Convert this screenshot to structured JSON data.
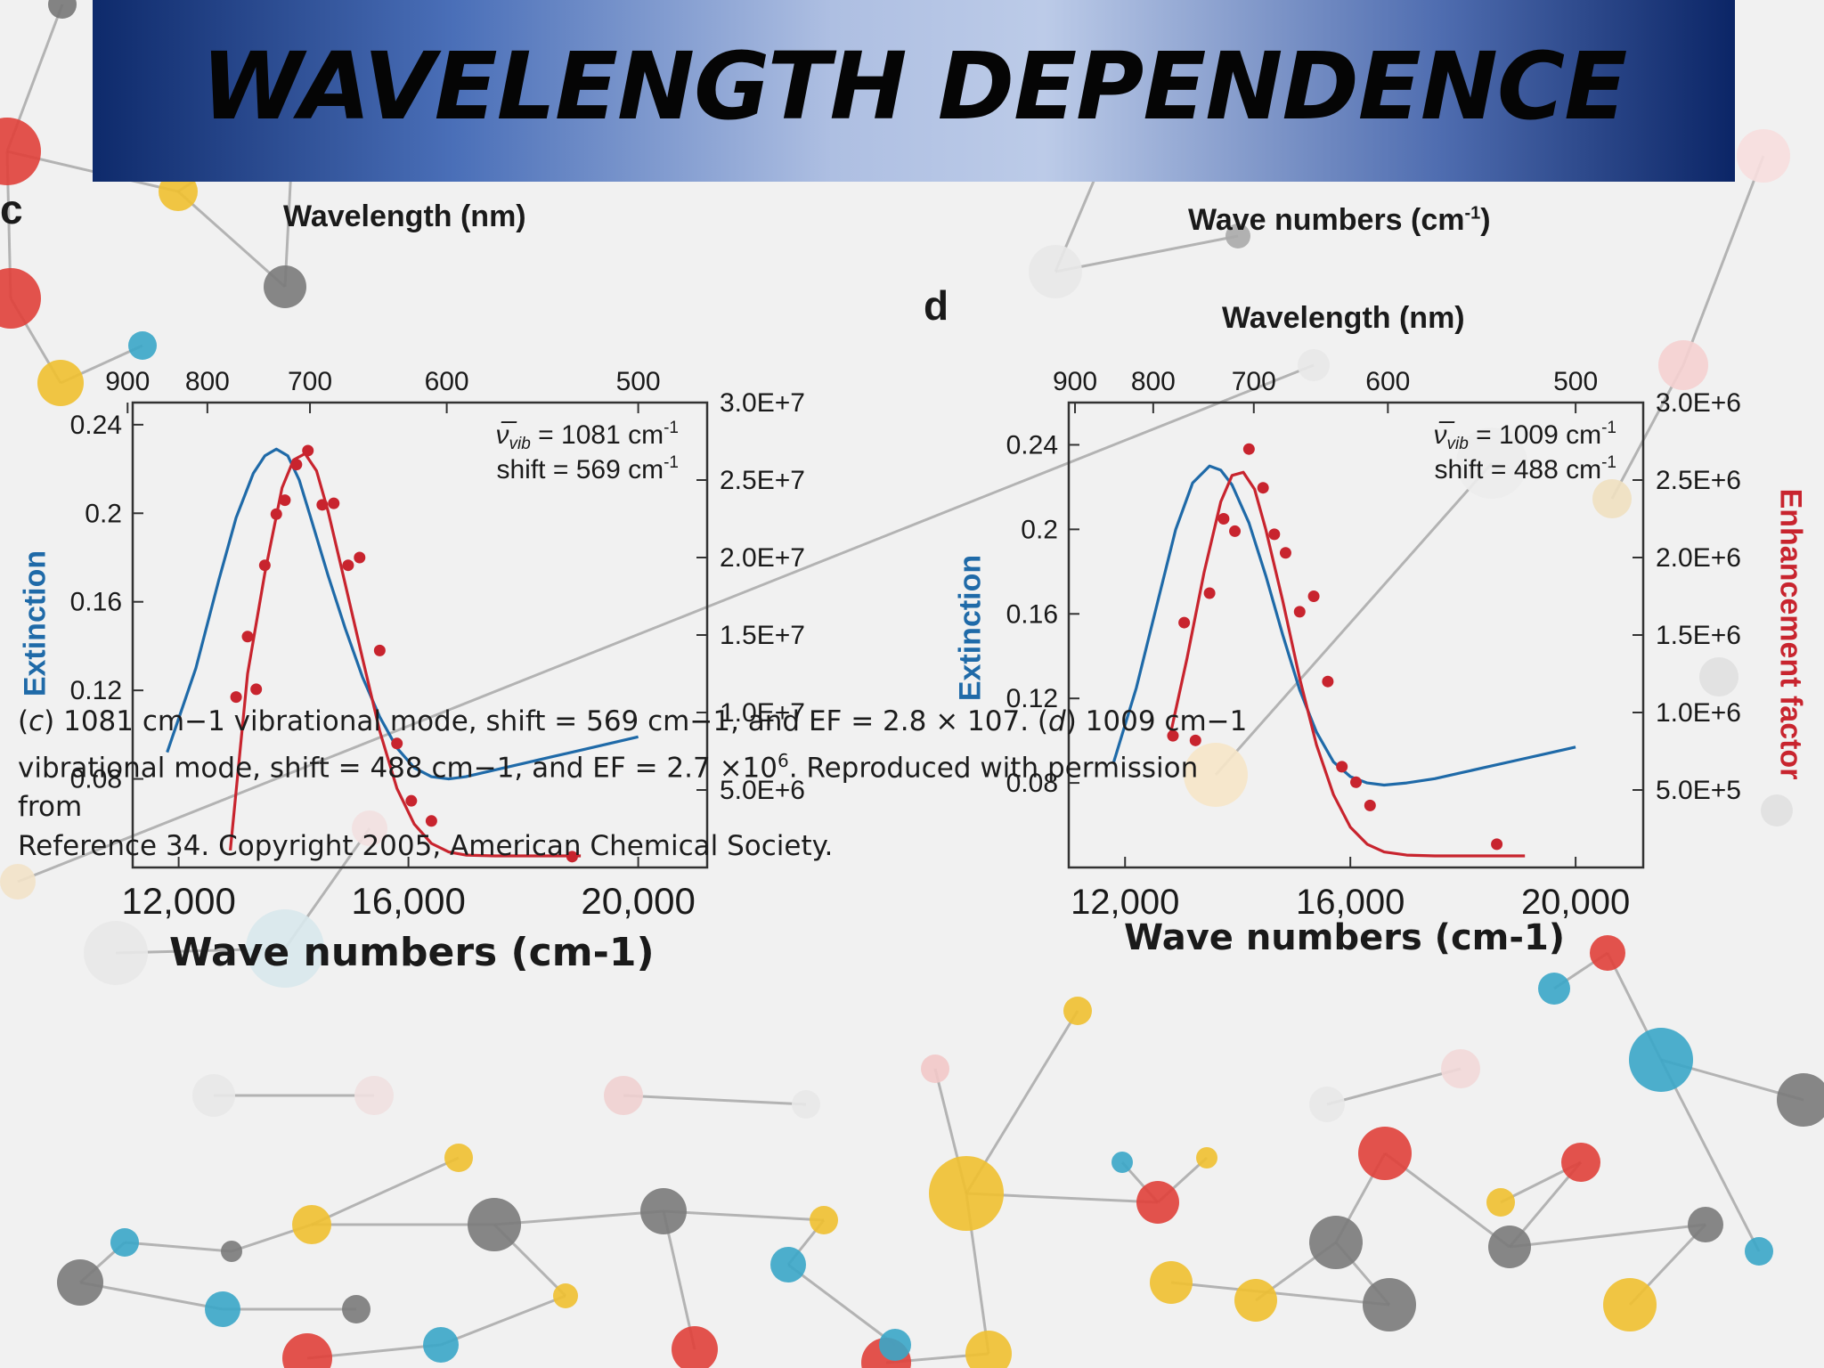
{
  "slide": {
    "title": "WAVELENGTH DEPENDENCE"
  },
  "labels": {
    "panel_c_letter": "c",
    "panel_c_wavelength_stray": "Wavelength (nm)",
    "panel_d_wavenumbers_stray": "Wave numbers (cm",
    "panel_d_wavenumbers_stray_sup": "-1",
    "panel_d_wavenumbers_stray_end": ")",
    "panel_d_letter": "d",
    "panel_d_wavelength": "Wavelength (nm)",
    "panel_c_xlabel": "Wave numbers (cm-1)",
    "panel_d_xlabel": "Wave numbers (cm-1)",
    "ylabel_left": "Extinction",
    "ylabel_right": "Enhancement factor"
  },
  "caption": {
    "line1_a": "(",
    "line1_c": "c",
    "line1_b": ") 1081 cm−1 vibrational mode, shift = 569 cm−1, and EF = 2.8 × 107. (",
    "line1_d": "d",
    "line1_e": ") 1009 cm−1",
    "line2_a": "vibrational mode, shift = 488 cm−1, and EF = 2.7 ×10",
    "line2_sup": "6",
    "line2_b": ". Reproduced with permission from",
    "line3": "Reference 34. Copyright 2005, American Chemical Society."
  },
  "colors": {
    "extinction": "#1f6aa8",
    "enhancement": "#c8242e",
    "axis": "#333333"
  },
  "chart_data": [
    {
      "panel": "c",
      "type": "line",
      "annotation": {
        "vib_symbol": "ν̅",
        "vib_sub": "vib",
        "vib_value": " = 1081 cm",
        "vib_sup": "-1",
        "shift_value": "shift = 569 cm",
        "shift_sup": "-1"
      },
      "xlabel": "Wave numbers (cm-1)",
      "xlim": [
        11200,
        21200
      ],
      "xticks": [
        12000,
        16000,
        20000
      ],
      "xticklabels": [
        "12,000",
        "16,000",
        "20,000"
      ],
      "top_axis": {
        "label": "Wavelength (nm)",
        "ticks": [
          900,
          800,
          700,
          600,
          500
        ],
        "ticklabels": [
          "900",
          "800",
          "700",
          "600",
          "500"
        ]
      },
      "left_axis": {
        "label": "Extinction",
        "ylim": [
          0.04,
          0.25
        ],
        "ticks": [
          0.08,
          0.12,
          0.16,
          0.2,
          0.24
        ],
        "ticklabels": [
          "0.08",
          "0.12",
          "0.16",
          "0.2",
          "0.24"
        ]
      },
      "right_axis": {
        "label": "",
        "ylim": [
          0,
          30000000.0
        ],
        "ticks": [
          5000000.0,
          10000000.0,
          15000000.0,
          20000000.0,
          25000000.0,
          30000000.0
        ],
        "ticklabels": [
          "5.0E+6",
          "1.0E+7",
          "1.5E+7",
          "2.0E+7",
          "2.5E+7",
          "3.0E+7"
        ]
      },
      "series": [
        {
          "kind": "extinction",
          "axis": "left",
          "x": [
            11800,
            12300,
            12700,
            13000,
            13300,
            13500,
            13700,
            13900,
            14100,
            14300,
            14600,
            14900,
            15200,
            15500,
            15800,
            16100,
            16400,
            16700,
            17000,
            17500,
            18000,
            18500,
            19000,
            19500,
            20000
          ],
          "y": [
            0.092,
            0.13,
            0.17,
            0.198,
            0.218,
            0.226,
            0.229,
            0.226,
            0.215,
            0.198,
            0.172,
            0.148,
            0.126,
            0.108,
            0.094,
            0.085,
            0.081,
            0.08,
            0.081,
            0.084,
            0.087,
            0.09,
            0.093,
            0.096,
            0.099
          ]
        },
        {
          "kind": "enhancement-fit",
          "axis": "right",
          "x": [
            12900,
            13200,
            13500,
            13800,
            14000,
            14200,
            14400,
            14600,
            14900,
            15200,
            15500,
            15800,
            16100,
            16400,
            16700,
            17000,
            17500,
            18000,
            18500,
            19000
          ],
          "y": [
            1100000.0,
            12500000.0,
            19000000.0,
            24500000.0,
            26300000.0,
            26700000.0,
            25600000.0,
            23000000.0,
            18300000.0,
            13500000.0,
            8800000.0,
            5100000.0,
            2800000.0,
            1550000.0,
            1000000.0,
            800000.0,
            750000.0,
            750000.0,
            750000.0,
            750000.0
          ]
        },
        {
          "kind": "enhancement-data",
          "axis": "right",
          "x": [
            13000,
            13200,
            13350,
            13500,
            13700,
            13850,
            14050,
            14250,
            14500,
            14700,
            14950,
            15150,
            15500,
            15800,
            16050,
            16400,
            18850
          ],
          "y": [
            11000000.0,
            14900000.0,
            11500000.0,
            19500000.0,
            22800000.0,
            23700000.0,
            26000000.0,
            26900000.0,
            23400000.0,
            23500000.0,
            19500000.0,
            20000000.0,
            14000000.0,
            8000000.0,
            4300000.0,
            3000000.0,
            700000.0
          ]
        }
      ]
    },
    {
      "panel": "d",
      "type": "line",
      "annotation": {
        "vib_symbol": "ν̅",
        "vib_sub": "vib",
        "vib_value": " = 1009 cm",
        "vib_sup": "-1",
        "shift_value": "shift = 488 cm",
        "shift_sup": "-1"
      },
      "xlabel": "Wave numbers (cm-1)",
      "xlim": [
        11000,
        21200
      ],
      "xticks": [
        12000,
        16000,
        20000
      ],
      "xticklabels": [
        "12,000",
        "16,000",
        "20,000"
      ],
      "top_axis": {
        "label": "Wavelength (nm)",
        "ticks": [
          900,
          800,
          700,
          600,
          500
        ],
        "ticklabels": [
          "900",
          "800",
          "700",
          "600",
          "500"
        ]
      },
      "left_axis": {
        "label": "Extinction",
        "ylim": [
          0.04,
          0.26
        ],
        "ticks": [
          0.08,
          0.12,
          0.16,
          0.2,
          0.24
        ],
        "ticklabels": [
          "0.08",
          "0.12",
          "0.16",
          "0.2",
          "0.24"
        ]
      },
      "right_axis": {
        "label": "Enhancement factor",
        "ylim": [
          0,
          3000000.0
        ],
        "ticks": [
          500000.0,
          1000000.0,
          1500000.0,
          2000000.0,
          2500000.0,
          3000000.0
        ],
        "ticklabels": [
          "5.0E+5",
          "1.0E+6",
          "1.5E+6",
          "2.0E+6",
          "2.5E+6",
          "3.0E+6"
        ]
      },
      "series": [
        {
          "kind": "extinction",
          "axis": "left",
          "x": [
            11800,
            12200,
            12600,
            12900,
            13200,
            13500,
            13700,
            13900,
            14200,
            14500,
            14800,
            15100,
            15400,
            15700,
            16000,
            16300,
            16600,
            17000,
            17500,
            18000,
            18500,
            19000,
            19500,
            20000
          ],
          "y": [
            0.09,
            0.125,
            0.168,
            0.2,
            0.222,
            0.23,
            0.228,
            0.221,
            0.203,
            0.178,
            0.15,
            0.124,
            0.104,
            0.09,
            0.083,
            0.08,
            0.079,
            0.08,
            0.082,
            0.085,
            0.088,
            0.091,
            0.094,
            0.097
          ]
        },
        {
          "kind": "enhancement-fit",
          "axis": "right",
          "x": [
            12800,
            13100,
            13400,
            13700,
            13900,
            14100,
            14300,
            14500,
            14800,
            15100,
            15400,
            15700,
            16000,
            16300,
            16600,
            17000,
            17500,
            18000,
            18500,
            19100
          ],
          "y": [
            850000.0,
            1350000.0,
            1900000.0,
            2360000.0,
            2530000.0,
            2550000.0,
            2440000.0,
            2180000.0,
            1720000.0,
            1220000.0,
            790000.0,
            470000.0,
            260000.0,
            150000.0,
            100000.0,
            80000.0,
            75000.0,
            75000.0,
            75000.0,
            75000.0
          ]
        },
        {
          "kind": "enhancement-data",
          "axis": "right",
          "x": [
            12850,
            13050,
            13250,
            13500,
            13750,
            13950,
            14200,
            14450,
            14650,
            14850,
            15100,
            15350,
            15600,
            15850,
            16100,
            16350,
            18600
          ],
          "y": [
            850000.0,
            1580000.0,
            820000.0,
            1770000.0,
            2250000.0,
            2170000.0,
            2700000.0,
            2450000.0,
            2150000.0,
            2030000.0,
            1650000.0,
            1750000.0,
            1200000.0,
            650000.0,
            550000.0,
            400000.0,
            150000.0
          ]
        }
      ]
    }
  ]
}
